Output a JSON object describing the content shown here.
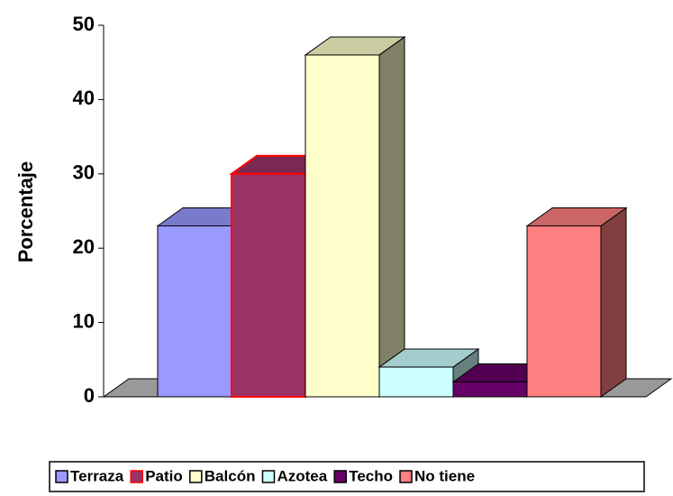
{
  "chart_data": {
    "type": "bar3d",
    "categories": [
      "Terraza",
      "Patio",
      "Balcón",
      "Azotea",
      "Techo",
      "No tiene"
    ],
    "values": [
      23,
      30,
      46,
      4,
      2,
      23
    ],
    "colors": [
      "#9999ff",
      "#993366",
      "#ffffcc",
      "#ccffff",
      "#660066",
      "#ff8080"
    ],
    "edgecolors": [
      "#000000",
      "#ff0000",
      "#000000",
      "#000000",
      "#000000",
      "#000000"
    ],
    "ylabel": "Porcentaje",
    "ylim": [
      0,
      50
    ],
    "yticks": [
      0,
      10,
      20,
      30,
      40,
      50
    ],
    "legend": "bottom"
  }
}
